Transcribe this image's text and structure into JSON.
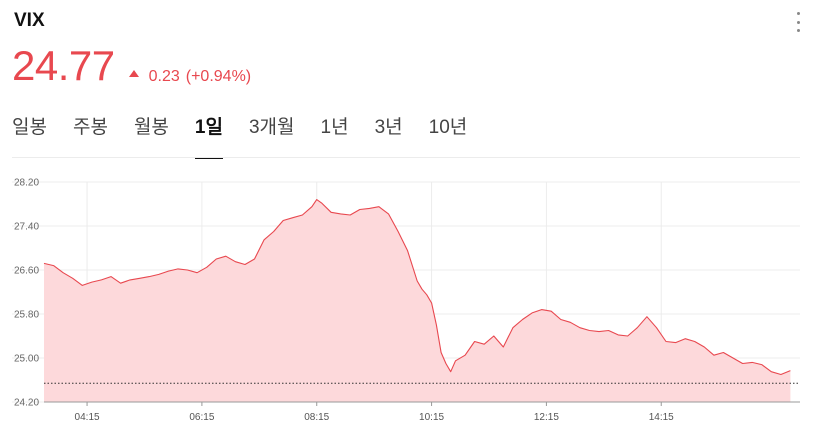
{
  "quote": {
    "symbol": "VIX",
    "price": "24.77",
    "change": "0.23",
    "change_pct": "(+0.94%)",
    "direction_icon": "up-triangle-icon",
    "color": "#e8484f"
  },
  "menu_icon": "vertical-ellipsis-icon",
  "tabs": [
    {
      "label": "일봉",
      "active": false
    },
    {
      "label": "주봉",
      "active": false
    },
    {
      "label": "월봉",
      "active": false
    },
    {
      "label": "1일",
      "active": true
    },
    {
      "label": "3개월",
      "active": false
    },
    {
      "label": "1년",
      "active": false
    },
    {
      "label": "3년",
      "active": false
    },
    {
      "label": "10년",
      "active": false
    }
  ],
  "chart_data": {
    "type": "area",
    "ylim": [
      24.2,
      28.2
    ],
    "yticks": [
      28.2,
      27.4,
      26.6,
      25.8,
      25.0,
      24.2
    ],
    "ytick_labels": [
      "28.20",
      "27.40",
      "26.60",
      "25.80",
      "25.00",
      "24.20"
    ],
    "xlim": [
      "03:30",
      "16:40"
    ],
    "xticks": [
      "04:15",
      "06:15",
      "08:15",
      "10:15",
      "12:15",
      "14:15"
    ],
    "reference_line": 24.54,
    "line_color": "#e8484f",
    "fill_color": "#fdd9db",
    "grid": true,
    "x": [
      "03:30",
      "03:40",
      "03:50",
      "04:00",
      "04:10",
      "04:20",
      "04:30",
      "04:40",
      "04:50",
      "05:00",
      "05:10",
      "05:20",
      "05:30",
      "05:40",
      "05:50",
      "06:00",
      "06:10",
      "06:20",
      "06:30",
      "06:40",
      "06:50",
      "07:00",
      "07:10",
      "07:20",
      "07:30",
      "07:40",
      "07:50",
      "08:00",
      "08:10",
      "08:15",
      "08:20",
      "08:30",
      "08:40",
      "08:50",
      "09:00",
      "09:10",
      "09:20",
      "09:30",
      "09:40",
      "09:50",
      "10:00",
      "10:05",
      "10:10",
      "10:15",
      "10:20",
      "10:25",
      "10:30",
      "10:35",
      "10:40",
      "10:50",
      "11:00",
      "11:10",
      "11:20",
      "11:30",
      "11:40",
      "11:50",
      "12:00",
      "12:10",
      "12:20",
      "12:30",
      "12:40",
      "12:50",
      "13:00",
      "13:10",
      "13:20",
      "13:30",
      "13:40",
      "13:50",
      "14:00",
      "14:10",
      "14:20",
      "14:30",
      "14:40",
      "14:50",
      "15:00",
      "15:10",
      "15:20",
      "15:30",
      "15:40",
      "15:50",
      "16:00",
      "16:10",
      "16:20",
      "16:30"
    ],
    "values": [
      26.72,
      26.68,
      26.55,
      26.45,
      26.32,
      26.38,
      26.42,
      26.48,
      26.36,
      26.42,
      26.45,
      26.48,
      26.52,
      26.58,
      26.62,
      26.6,
      26.55,
      26.65,
      26.8,
      26.85,
      26.75,
      26.7,
      26.8,
      27.15,
      27.3,
      27.5,
      27.55,
      27.6,
      27.75,
      27.88,
      27.82,
      27.65,
      27.62,
      27.6,
      27.7,
      27.72,
      27.75,
      27.62,
      27.3,
      26.95,
      26.4,
      26.25,
      26.15,
      26.0,
      25.6,
      25.1,
      24.9,
      24.75,
      24.95,
      25.05,
      25.3,
      25.25,
      25.4,
      25.2,
      25.55,
      25.7,
      25.82,
      25.88,
      25.85,
      25.7,
      25.65,
      25.55,
      25.5,
      25.48,
      25.5,
      25.42,
      25.4,
      25.55,
      25.75,
      25.55,
      25.3,
      25.28,
      25.35,
      25.3,
      25.2,
      25.05,
      25.1,
      25.0,
      24.9,
      24.92,
      24.88,
      24.75,
      24.7,
      24.77
    ]
  }
}
